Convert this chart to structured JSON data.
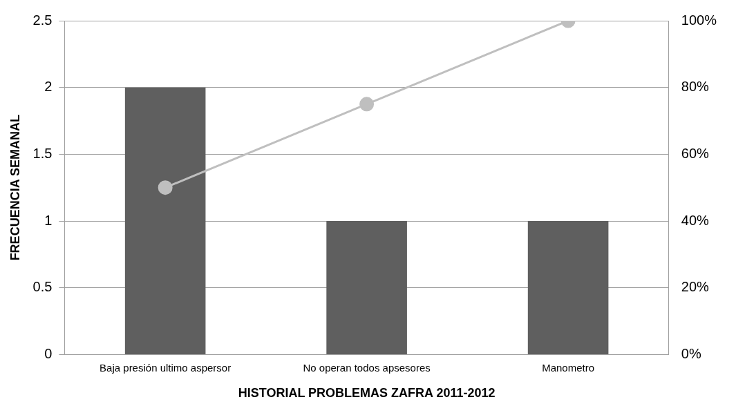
{
  "chart_data": {
    "type": "bar",
    "xlabel": "HISTORIAL PROBLEMAS ZAFRA 2011-2012",
    "ylabel": "FRECUENCIA SEMANAL",
    "categories": [
      "Baja presión ultimo aspersor",
      "No operan todos apsesores",
      "Manometro"
    ],
    "series": [
      {
        "color": "#5f5f5f",
        "values": [
          2,
          1,
          1
        ]
      },
      {
        "type": "line",
        "axis": "y2",
        "color": "#bfbfbf",
        "values": [
          50,
          75,
          100
        ],
        "marker": "circle"
      }
    ],
    "ylim": [
      0,
      2.5
    ],
    "yticks": [
      0,
      0.5,
      1,
      1.5,
      2,
      2.5
    ],
    "y2lim": [
      0,
      100
    ],
    "y2ticks": [
      {
        "value": 0,
        "label": "0%"
      },
      {
        "value": 20,
        "label": "20%"
      },
      {
        "value": 40,
        "label": "40%"
      },
      {
        "value": 60,
        "label": "60%"
      },
      {
        "value": 80,
        "label": "80%"
      },
      {
        "value": 100,
        "label": "100%"
      }
    ],
    "grid": "y",
    "legend": false
  }
}
